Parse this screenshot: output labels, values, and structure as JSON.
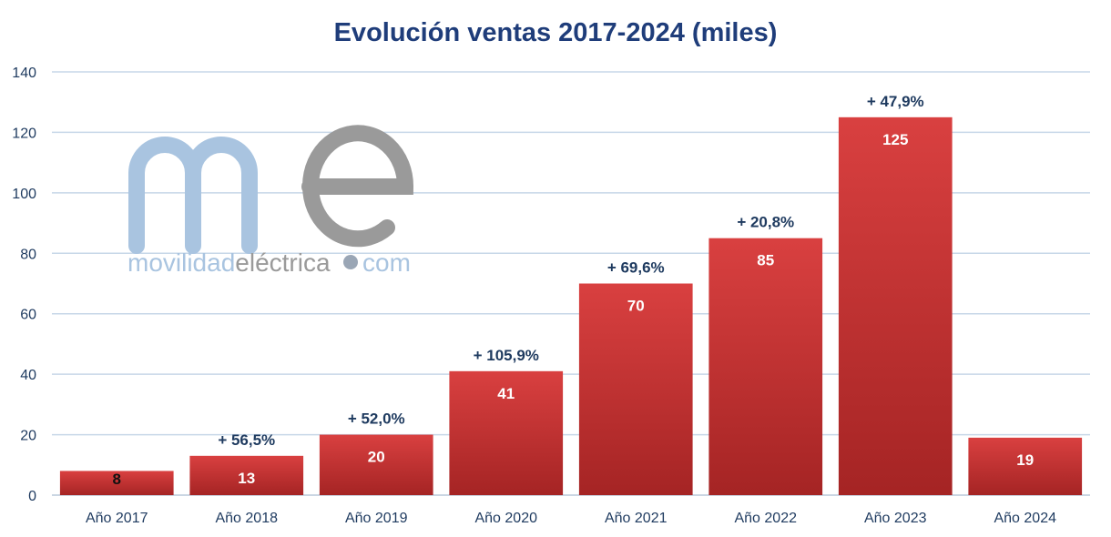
{
  "chart_data": {
    "type": "bar",
    "title": "Evolución ventas 2017-2024 (miles)",
    "xlabel": "",
    "ylabel": "",
    "ylim": [
      0,
      140
    ],
    "yticks": [
      0,
      20,
      40,
      60,
      80,
      100,
      120,
      140
    ],
    "grid": true,
    "categories": [
      "Año 2017",
      "Año 2018",
      "Año 2019",
      "Año 2020",
      "Año 2021",
      "Año 2022",
      "Año 2023",
      "Año 2024"
    ],
    "values": [
      8,
      13,
      20,
      41,
      70,
      85,
      125,
      19
    ],
    "growth_labels": [
      "",
      "+ 56,5%",
      "+ 52,0%",
      "+ 105,9%",
      "+ 69,6%",
      "+ 20,8%",
      "+ 47,9%",
      ""
    ]
  },
  "watermark": {
    "logo_letters": "me",
    "text_part1": "movilidad",
    "text_part2": "eléctrica",
    "text_part3": "com"
  },
  "colors": {
    "title": "#1f3d7a",
    "bar_top": "#d94040",
    "bar_bottom": "#a52424",
    "grid": "#c7d7e8",
    "annotation": "#1e3a5f",
    "value_label": "#ffffff",
    "value_label_small": "#111111",
    "watermark_blue": "#a9c4e0",
    "watermark_gray": "#9a9a9a"
  }
}
